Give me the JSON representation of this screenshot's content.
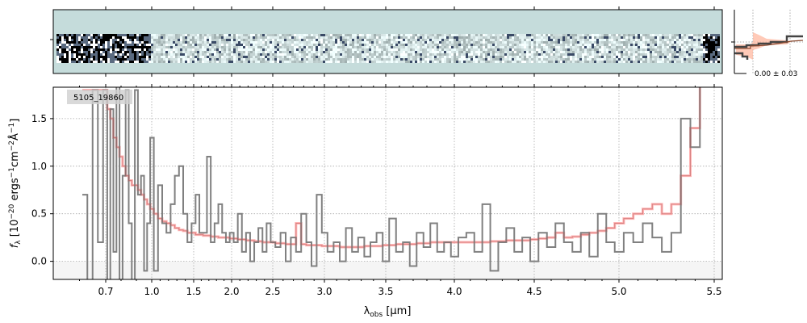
{
  "chart_data": {
    "type": "line",
    "object_label": "5105_19860",
    "xlabel_main": "λ",
    "xlabel_sub": "obs",
    "xlabel_unit": " [μm]",
    "ylabel": "f_λ [10^-20 ergs^-1 cm^-2 Å^-1]",
    "ylabel_parts": {
      "f": "f",
      "lam": "λ",
      "a": " [10",
      "e1": "−20",
      "b": " ergs",
      "e2": "−1",
      "c": "cm",
      "e3": "−2",
      "d": "Å",
      "e4": "−1",
      "e": "]"
    },
    "xlim": [
      0.5,
      5.52
    ],
    "ylim": [
      -0.19,
      1.83
    ],
    "xticks": [
      0.7,
      1.0,
      1.5,
      2.0,
      2.5,
      3.0,
      3.5,
      4.0,
      4.5,
      5.0,
      5.5
    ],
    "xtick_labels": [
      "0.7",
      "1.0",
      "1.5",
      "2.0",
      "2.5",
      "3.0",
      "3.5",
      "4.0",
      "4.5",
      "5.0",
      "5.5"
    ],
    "yticks": [
      0.0,
      0.5,
      1.0,
      1.5
    ],
    "ytick_labels": [
      "0.0",
      "0.5",
      "1.0",
      "1.5"
    ],
    "grid": true,
    "inset_label": "0.00 ± 0.03",
    "colors": {
      "data": "#808080",
      "model": "#ffb3b3",
      "model_line": "#b05050",
      "twod_bg": "#c5dcdb"
    },
    "series": [
      {
        "name": "data",
        "x": [
          0.62,
          0.64,
          0.66,
          0.68,
          0.7,
          0.72,
          0.74,
          0.76,
          0.78,
          0.8,
          0.82,
          0.84,
          0.86,
          0.88,
          0.9,
          0.92,
          0.94,
          0.96,
          0.98,
          1.0,
          1.05,
          1.1,
          1.15,
          1.2,
          1.25,
          1.3,
          1.35,
          1.4,
          1.45,
          1.5,
          1.55,
          1.6,
          1.65,
          1.7,
          1.75,
          1.8,
          1.85,
          1.9,
          1.95,
          2.0,
          2.05,
          2.1,
          2.15,
          2.2,
          2.25,
          2.3,
          2.35,
          2.4,
          2.45,
          2.5,
          2.55,
          2.6,
          2.65,
          2.7,
          2.75,
          2.8,
          2.85,
          2.9,
          2.95,
          3.0,
          3.05,
          3.1,
          3.15,
          3.2,
          3.25,
          3.3,
          3.35,
          3.4,
          3.45,
          3.5,
          3.55,
          3.6,
          3.65,
          3.7,
          3.75,
          3.8,
          3.85,
          3.9,
          3.95,
          4.0,
          4.05,
          4.1,
          4.15,
          4.2,
          4.25,
          4.3,
          4.35,
          4.4,
          4.45,
          4.5,
          4.55,
          4.6,
          4.65,
          4.7,
          4.75,
          4.8,
          4.85,
          4.9,
          4.95,
          5.0,
          5.05,
          5.1,
          5.15,
          5.2,
          5.25,
          5.3,
          5.35,
          5.4,
          5.45
        ],
        "y": [
          0.7,
          -0.3,
          1.8,
          0.2,
          1.8,
          -0.2,
          1.6,
          0.1,
          1.9,
          -0.2,
          0.9,
          1.8,
          0.4,
          -0.3,
          1.8,
          0.7,
          0.9,
          -0.1,
          0.4,
          1.3,
          -0.1,
          0.8,
          0.4,
          0.3,
          0.6,
          0.9,
          1.0,
          0.5,
          0.2,
          0.4,
          0.7,
          0.3,
          0.3,
          1.1,
          0.2,
          0.4,
          0.6,
          0.3,
          0.2,
          0.3,
          0.2,
          0.5,
          0.1,
          0.3,
          0.0,
          0.2,
          0.35,
          0.1,
          0.4,
          0.2,
          0.15,
          0.3,
          0.0,
          0.25,
          0.1,
          0.5,
          0.2,
          -0.05,
          0.7,
          0.3,
          0.1,
          0.2,
          0.0,
          0.35,
          0.1,
          0.25,
          0.05,
          0.2,
          0.3,
          0.0,
          0.45,
          0.1,
          0.2,
          -0.05,
          0.3,
          0.15,
          0.4,
          0.1,
          0.2,
          0.05,
          0.25,
          0.3,
          0.1,
          0.6,
          -0.1,
          0.2,
          0.35,
          0.1,
          0.25,
          0.0,
          0.3,
          0.15,
          0.4,
          0.2,
          0.1,
          0.3,
          0.05,
          0.5,
          0.2,
          0.1,
          0.3,
          0.2,
          0.4,
          0.25,
          0.1,
          0.3,
          1.5,
          1.2,
          1.9
        ]
      },
      {
        "name": "model",
        "y": [
          1.8,
          1.8,
          1.8,
          1.8,
          1.8,
          1.6,
          1.5,
          1.3,
          1.2,
          1.1,
          1.0,
          0.9,
          0.85,
          0.8,
          0.8,
          0.75,
          0.7,
          0.65,
          0.6,
          0.55,
          0.5,
          0.45,
          0.42,
          0.4,
          0.38,
          0.35,
          0.33,
          0.32,
          0.3,
          0.3,
          0.28,
          0.28,
          0.27,
          0.27,
          0.26,
          0.26,
          0.25,
          0.25,
          0.25,
          0.24,
          0.24,
          0.23,
          0.23,
          0.22,
          0.22,
          0.21,
          0.21,
          0.2,
          0.2,
          0.2,
          0.19,
          0.19,
          0.18,
          0.18,
          0.4,
          0.18,
          0.17,
          0.17,
          0.17,
          0.16,
          0.16,
          0.16,
          0.15,
          0.15,
          0.15,
          0.15,
          0.16,
          0.16,
          0.16,
          0.17,
          0.17,
          0.18,
          0.18,
          0.18,
          0.19,
          0.19,
          0.2,
          0.2,
          0.2,
          0.2,
          0.2,
          0.2,
          0.2,
          0.2,
          0.21,
          0.21,
          0.22,
          0.22,
          0.22,
          0.23,
          0.24,
          0.25,
          0.3,
          0.25,
          0.26,
          0.28,
          0.3,
          0.32,
          0.35,
          0.4,
          0.45,
          0.5,
          0.55,
          0.6,
          0.5,
          0.6,
          0.9,
          1.4,
          1.9
        ]
      }
    ]
  }
}
